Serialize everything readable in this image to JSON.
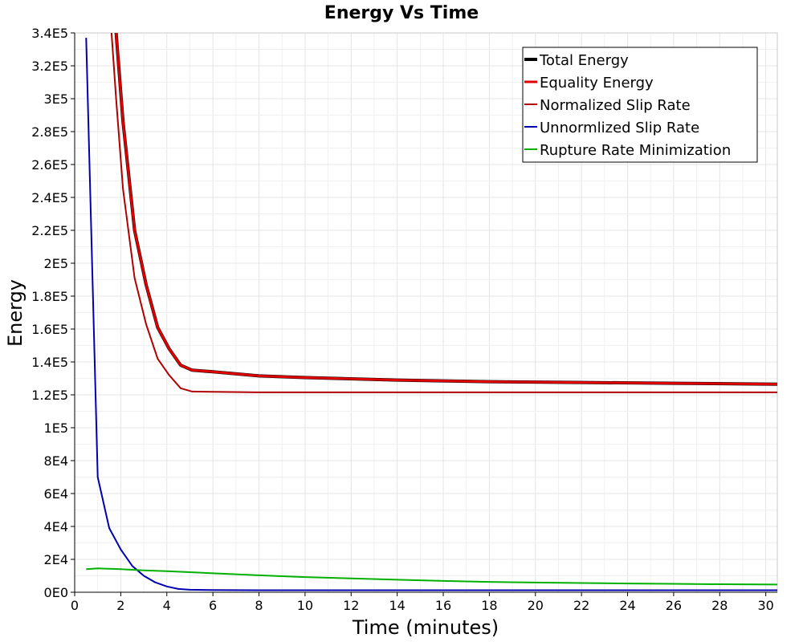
{
  "chart_data": {
    "type": "line",
    "title": "Energy Vs Time",
    "xlabel": "Time (minutes)",
    "ylabel": "Energy",
    "xlim": [
      0,
      30.5
    ],
    "ylim": [
      0,
      340000
    ],
    "xticks": [
      0,
      2,
      4,
      6,
      8,
      10,
      12,
      14,
      16,
      18,
      20,
      22,
      24,
      26,
      28,
      30
    ],
    "xtick_labels": [
      "0",
      "2",
      "4",
      "6",
      "8",
      "10",
      "12",
      "14",
      "16",
      "18",
      "20",
      "22",
      "24",
      "26",
      "28",
      "30"
    ],
    "yticks": [
      0,
      20000,
      40000,
      60000,
      80000,
      100000,
      120000,
      140000,
      160000,
      180000,
      200000,
      220000,
      240000,
      260000,
      280000,
      300000,
      320000,
      340000
    ],
    "ytick_labels": [
      "0E0",
      "2E4",
      "4E4",
      "6E4",
      "8E4",
      "1E5",
      "1.2E5",
      "1.4E5",
      "1.6E5",
      "1.8E5",
      "2E5",
      "2.2E5",
      "2.4E5",
      "2.6E5",
      "2.8E5",
      "3E5",
      "3.2E5",
      "3.4E5"
    ],
    "grid": true,
    "legend_position": "top-right",
    "series": [
      {
        "name": "Total Energy",
        "color": "#000000",
        "line_width": 4,
        "x": [
          1.8,
          2.1,
          2.6,
          3.1,
          3.6,
          4.1,
          4.6,
          5.1,
          6,
          8,
          10,
          14,
          18,
          22,
          26,
          30.5
        ],
        "y": [
          340000,
          286000,
          220000,
          187000,
          161000,
          148000,
          138000,
          135000,
          134000,
          131500,
          130500,
          129000,
          128000,
          127500,
          127000,
          126500
        ]
      },
      {
        "name": "Equality Energy",
        "color": "#e00000",
        "line_width": 3,
        "x": [
          1.8,
          2.1,
          2.6,
          3.1,
          3.6,
          4.1,
          4.6,
          5.1,
          6,
          8,
          10,
          14,
          18,
          22,
          26,
          30.5
        ],
        "y": [
          340000,
          286000,
          220000,
          187000,
          161000,
          148000,
          138000,
          135000,
          134000,
          131500,
          130500,
          129000,
          128000,
          127500,
          127000,
          126500
        ]
      },
      {
        "name": "Normalized Slip Rate",
        "color": "#b00000",
        "line_width": 2,
        "x": [
          1.6,
          1.8,
          2.1,
          2.6,
          3.1,
          3.6,
          4.1,
          4.6,
          5.1,
          6,
          8,
          10,
          14,
          18,
          22,
          26,
          30.5
        ],
        "y": [
          340000,
          300000,
          245000,
          191000,
          163000,
          142000,
          132000,
          124000,
          122000,
          121800,
          121500,
          121500,
          121500,
          121500,
          121500,
          121500,
          121500
        ]
      },
      {
        "name": "Unnormlized Slip Rate",
        "color": "#0000b0",
        "line_width": 2,
        "x": [
          0.5,
          1,
          1.5,
          2,
          2.5,
          3,
          3.5,
          4,
          4.5,
          5,
          6,
          8,
          10,
          14,
          18,
          22,
          26,
          30.5
        ],
        "y": [
          337000,
          70000,
          39000,
          26000,
          16000,
          10000,
          6000,
          3500,
          2000,
          1500,
          1300,
          1200,
          1200,
          1200,
          1200,
          1200,
          1200,
          1200
        ]
      },
      {
        "name": "Rupture Rate Minimization",
        "color": "#00b000",
        "line_width": 2,
        "x": [
          0.5,
          1,
          1.5,
          2,
          3,
          4,
          5,
          6,
          8,
          10,
          12,
          14,
          16,
          18,
          20,
          22,
          24,
          26,
          28,
          30.5
        ],
        "y": [
          14000,
          14500,
          14300,
          14000,
          13300,
          12800,
          12200,
          11500,
          10300,
          9200,
          8400,
          7600,
          6900,
          6300,
          5900,
          5600,
          5300,
          5100,
          4900,
          4700
        ]
      }
    ]
  }
}
